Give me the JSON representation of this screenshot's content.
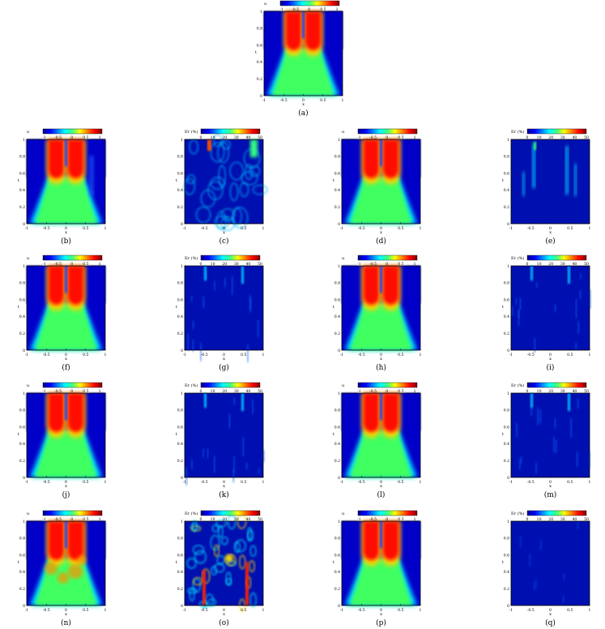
{
  "panels": [
    {
      "id": "a",
      "caption": "(a)",
      "cbar_label": "u",
      "cbar_ticks": [
        "-1",
        "-0.5",
        "0",
        "0.5",
        "1"
      ],
      "xlabel": "x",
      "ylabel": "t",
      "xticks": [
        "-1",
        "-0.5",
        "0",
        "0.5",
        "1"
      ],
      "yticks": [
        "0",
        "0.2",
        "0.4",
        "0.6",
        "0.8",
        "1"
      ],
      "kind": "solution"
    },
    {
      "id": "b",
      "caption": "(b)",
      "cbar_label": "u",
      "cbar_ticks": [
        "-1",
        "-0.5",
        "0",
        "0.5",
        "1"
      ],
      "xlabel": "x",
      "ylabel": "t",
      "xticks": [
        "-1",
        "-0.5",
        "0",
        "0.5",
        "1"
      ],
      "yticks": [
        "0",
        "0.2",
        "0.4",
        "0.6",
        "0.8",
        "1"
      ],
      "kind": "solution-smooth"
    },
    {
      "id": "c",
      "caption": "(c)",
      "cbar_label": "Er (%)",
      "cbar_ticks": [
        "0",
        "10",
        "20",
        "30",
        "40",
        "50"
      ],
      "xlabel": "x",
      "ylabel": "t",
      "xticks": [
        "-1",
        "-0.5",
        "0",
        "0.5",
        "1"
      ],
      "yticks": [
        "0",
        "0.2",
        "0.4",
        "0.6",
        "0.8",
        "1"
      ],
      "kind": "error-blobs"
    },
    {
      "id": "d",
      "caption": "(d)",
      "cbar_label": "u",
      "cbar_ticks": [
        "-1",
        "-0.5",
        "0",
        "0.5",
        "1"
      ],
      "xlabel": "x",
      "ylabel": "t",
      "xticks": [
        "-1",
        "-0.5",
        "0",
        "0.5",
        "1"
      ],
      "yticks": [
        "0",
        "0.2",
        "0.4",
        "0.6",
        "0.8",
        "1"
      ],
      "kind": "solution"
    },
    {
      "id": "e",
      "caption": "(e)",
      "cbar_label": "Er (%)",
      "cbar_ticks": [
        "0",
        "10",
        "20",
        "30",
        "40",
        "50"
      ],
      "xlabel": "x",
      "ylabel": "t",
      "xticks": [
        "-1",
        "-0.5",
        "0",
        "0.5",
        "1"
      ],
      "yticks": [
        "0",
        "0.2",
        "0.4",
        "0.6",
        "0.8",
        "1"
      ],
      "kind": "error-streaks"
    },
    {
      "id": "f",
      "caption": "(f)",
      "cbar_label": "u",
      "cbar_ticks": [
        "-1",
        "-0.5",
        "0",
        "0.5",
        "1"
      ],
      "xlabel": "x",
      "ylabel": "t",
      "xticks": [
        "-1",
        "-0.5",
        "0",
        "0.5",
        "1"
      ],
      "yticks": [
        "0",
        "0.2",
        "0.4",
        "0.6",
        "0.8",
        "1"
      ],
      "kind": "solution"
    },
    {
      "id": "g",
      "caption": "(g)",
      "cbar_label": "Er (%)",
      "cbar_ticks": [
        "0",
        "10",
        "20",
        "30",
        "40",
        "50"
      ],
      "xlabel": "x",
      "ylabel": "t",
      "xticks": [
        "-1",
        "-0.5",
        "0",
        "0.5",
        "1"
      ],
      "yticks": [
        "0",
        "0.2",
        "0.4",
        "0.6",
        "0.8",
        "1"
      ],
      "kind": "error-low"
    },
    {
      "id": "h",
      "caption": "(h)",
      "cbar_label": "u",
      "cbar_ticks": [
        "-1",
        "-0.5",
        "0",
        "0.5",
        "1"
      ],
      "xlabel": "x",
      "ylabel": "t",
      "xticks": [
        "-1",
        "-0.5",
        "0",
        "0.5",
        "1"
      ],
      "yticks": [
        "0",
        "0.2",
        "0.4",
        "0.6",
        "0.8",
        "1"
      ],
      "kind": "solution"
    },
    {
      "id": "i",
      "caption": "(i)",
      "cbar_label": "Er (%)",
      "cbar_ticks": [
        "0",
        "10",
        "20",
        "30",
        "40",
        "50"
      ],
      "xlabel": "x",
      "ylabel": "t",
      "xticks": [
        "-1",
        "-0.5",
        "0",
        "0.5",
        "1"
      ],
      "yticks": [
        "0",
        "0.2",
        "0.4",
        "0.6",
        "0.8",
        "1"
      ],
      "kind": "error-low"
    },
    {
      "id": "j",
      "caption": "(j)",
      "cbar_label": "u",
      "cbar_ticks": [
        "-1",
        "-0.5",
        "0",
        "0.5",
        "1"
      ],
      "xlabel": "x",
      "ylabel": "t",
      "xticks": [
        "-1",
        "-0.5",
        "0",
        "0.5",
        "1"
      ],
      "yticks": [
        "0",
        "0.2",
        "0.4",
        "0.6",
        "0.8",
        "1"
      ],
      "kind": "solution"
    },
    {
      "id": "k",
      "caption": "(k)",
      "cbar_label": "Er (%)",
      "cbar_ticks": [
        "0",
        "10",
        "20",
        "30",
        "40",
        "50"
      ],
      "xlabel": "x",
      "ylabel": "t",
      "xticks": [
        "-1",
        "-0.5",
        "0",
        "0.5",
        "1"
      ],
      "yticks": [
        "0",
        "0.2",
        "0.4",
        "0.6",
        "0.8",
        "1"
      ],
      "kind": "error-low"
    },
    {
      "id": "l",
      "caption": "(l)",
      "cbar_label": "u",
      "cbar_ticks": [
        "-1",
        "-0.5",
        "0",
        "0.5",
        "1"
      ],
      "xlabel": "x",
      "ylabel": "t",
      "xticks": [
        "-1",
        "-0.5",
        "0",
        "0.5",
        "1"
      ],
      "yticks": [
        "0",
        "0.2",
        "0.4",
        "0.6",
        "0.8",
        "1"
      ],
      "kind": "solution"
    },
    {
      "id": "m",
      "caption": "(m)",
      "cbar_label": "Er (%)",
      "cbar_ticks": [
        "0",
        "10",
        "20",
        "30",
        "40",
        "50"
      ],
      "xlabel": "x",
      "ylabel": "t",
      "xticks": [
        "-1",
        "-0.5",
        "0",
        "0.5",
        "1"
      ],
      "yticks": [
        "0",
        "0.2",
        "0.4",
        "0.6",
        "0.8",
        "1"
      ],
      "kind": "error-low"
    },
    {
      "id": "n",
      "caption": "(n)",
      "cbar_label": "u",
      "cbar_ticks": [
        "-1",
        "-0.5",
        "0",
        "0.5",
        "1"
      ],
      "xlabel": "x",
      "ylabel": "t",
      "xticks": [
        "-1",
        "-0.5",
        "0",
        "0.5",
        "1"
      ],
      "yticks": [
        "0",
        "0.2",
        "0.4",
        "0.6",
        "0.8",
        "1"
      ],
      "kind": "solution-bad"
    },
    {
      "id": "o",
      "caption": "(o)",
      "cbar_label": "Er (%)",
      "cbar_ticks": [
        "0",
        "10",
        "20",
        "30",
        "40",
        "50"
      ],
      "xlabel": "x",
      "ylabel": "t",
      "xticks": [
        "-1",
        "-0.5",
        "0",
        "0.5",
        "1"
      ],
      "yticks": [
        "0",
        "0.2",
        "0.4",
        "0.6",
        "0.8",
        "1"
      ],
      "kind": "error-high"
    },
    {
      "id": "p",
      "caption": "(p)",
      "cbar_label": "u",
      "cbar_ticks": [
        "-1",
        "-0.5",
        "0",
        "0.5",
        "1"
      ],
      "xlabel": "x",
      "ylabel": "t",
      "xticks": [
        "-1",
        "-0.5",
        "0",
        "0.5",
        "1"
      ],
      "yticks": [
        "0",
        "0.2",
        "0.4",
        "0.6",
        "0.8",
        "1"
      ],
      "kind": "solution"
    },
    {
      "id": "q",
      "caption": "(q)",
      "cbar_label": "Er (%)",
      "cbar_ticks": [
        "0",
        "10",
        "20",
        "30",
        "40",
        "50"
      ],
      "xlabel": "x",
      "ylabel": "t",
      "xticks": [
        "-1",
        "-0.5",
        "0",
        "0.5",
        "1"
      ],
      "yticks": [
        "0",
        "0.2",
        "0.4",
        "0.6",
        "0.8",
        "1"
      ],
      "kind": "error-min"
    }
  ]
}
